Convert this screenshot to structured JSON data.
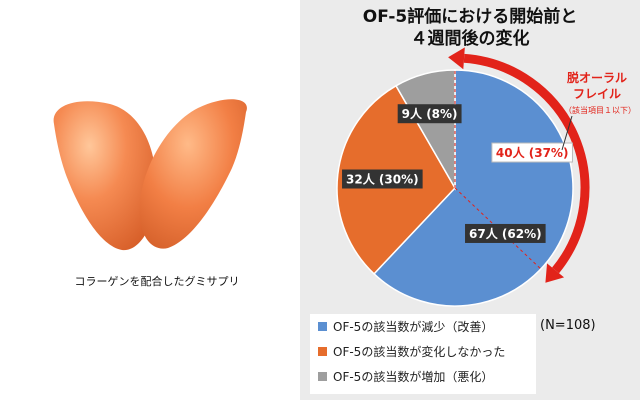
{
  "caption": "コラーゲンを配合したグミサプリ",
  "colors": {
    "improved": "#5b8fd1",
    "unchanged": "#e66d2c",
    "worse": "#9e9e9e",
    "accent_red": "#e2231a",
    "gummy": "#f07b47"
  },
  "chart_data": {
    "type": "pie",
    "title": "OF-5評価における開始前と\n４週間後の変化",
    "categories": [
      "OF-5の該当数が減少（改善）",
      "OF-5の該当数が変化しなかった",
      "OF-5の該当数が増加（悪化）"
    ],
    "values": [
      67,
      32,
      9
    ],
    "percents": [
      62,
      30,
      8
    ],
    "data_labels": [
      "67人 (62%)",
      "32人 (30%)",
      "9人 (8%)"
    ],
    "sub_segment": {
      "value": 40,
      "percent": 37,
      "label": "40人 (37%)"
    },
    "annotation": {
      "title": "脱オーラル\nフレイル",
      "note": "（該当項目１以下）"
    },
    "legend_position": "bottom-left",
    "n_label": "(N=108)"
  }
}
